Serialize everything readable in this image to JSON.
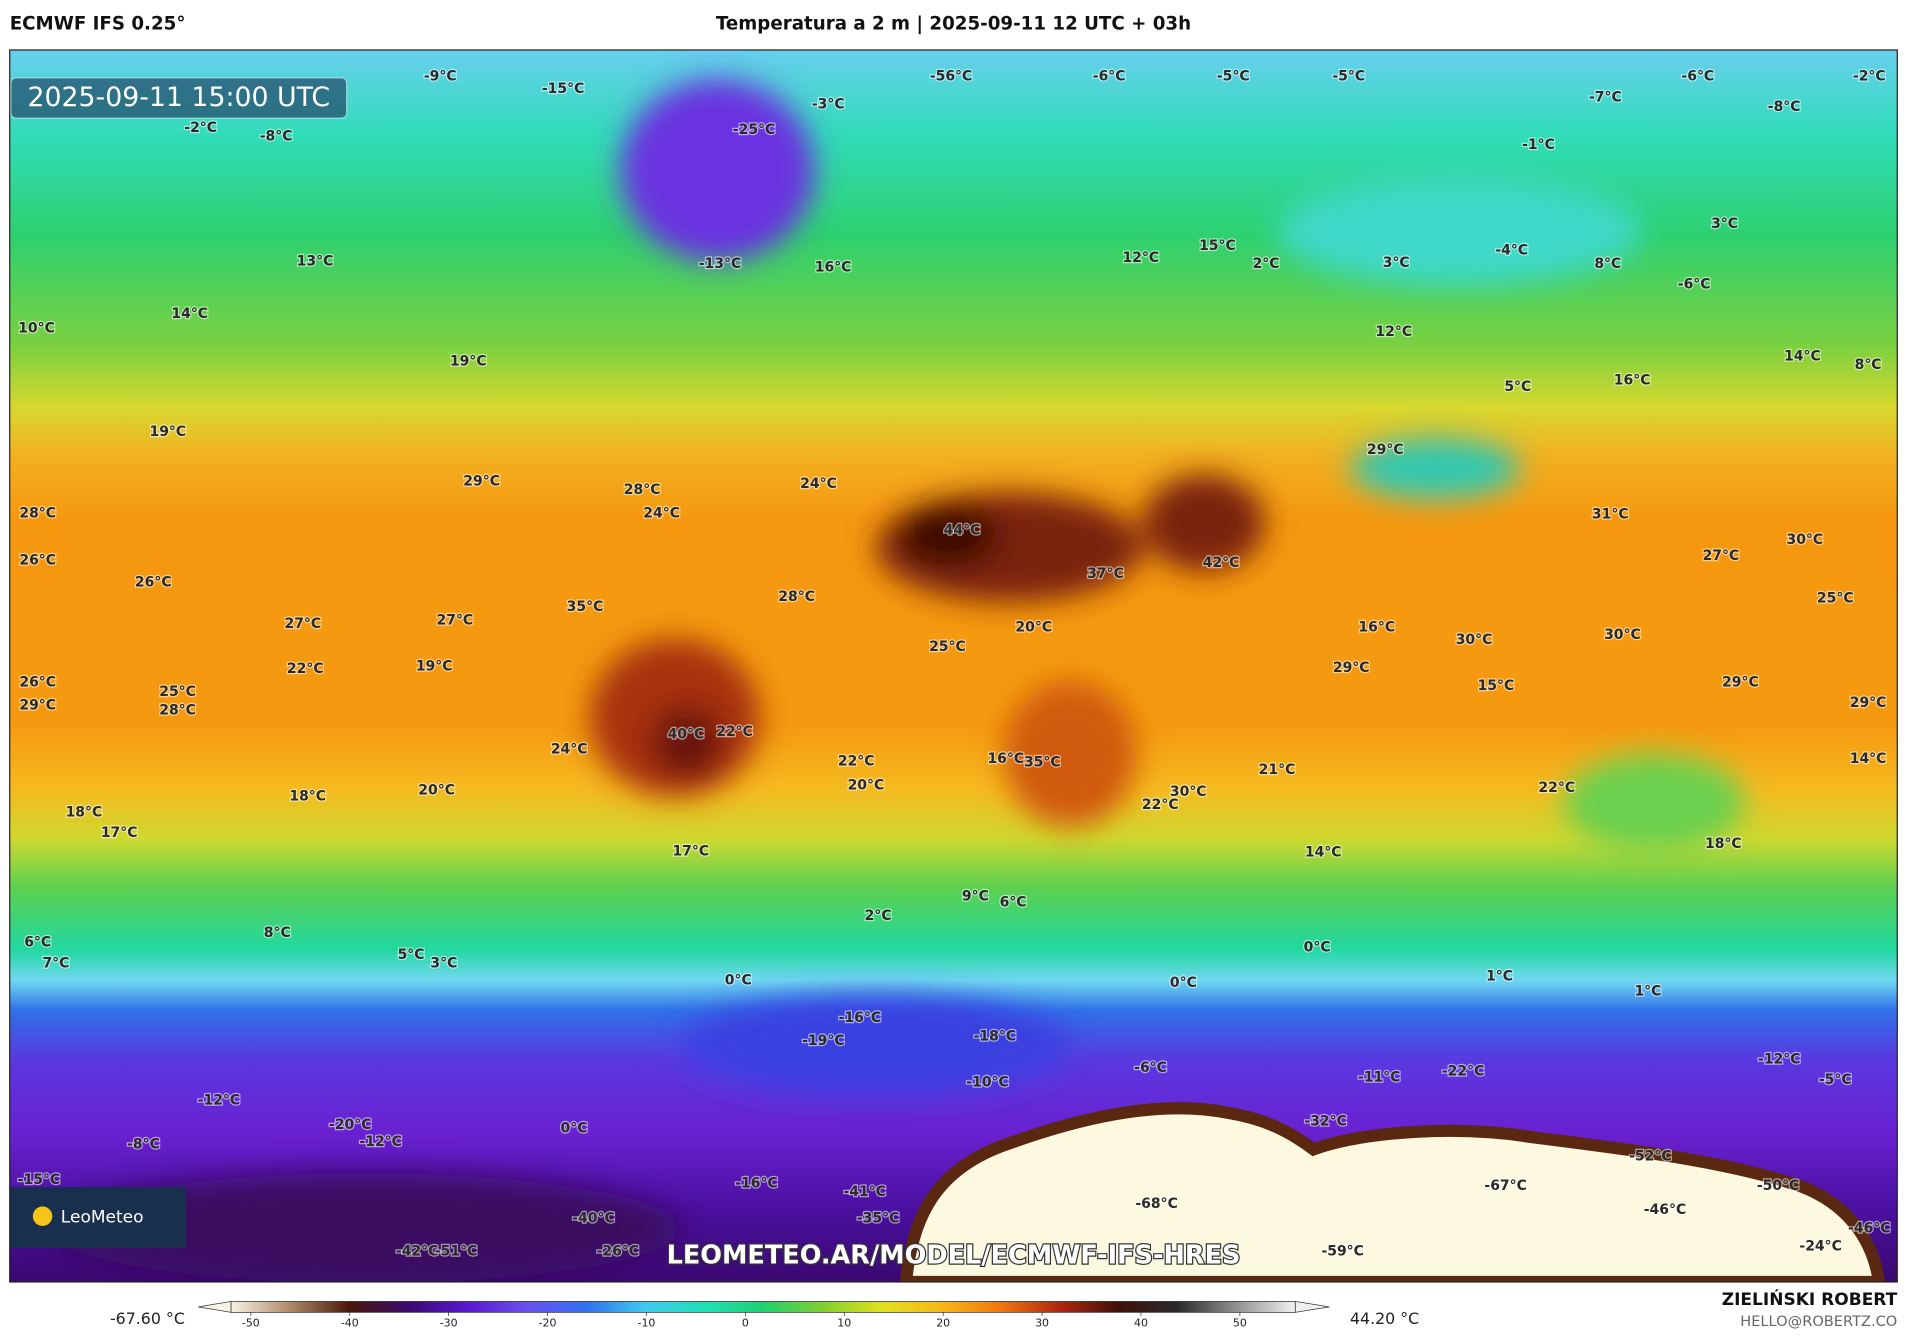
{
  "header": {
    "source": "ECMWF IFS 0.25°",
    "title": "Temperatura a 2 m | 2025-09-11 12 UTC + 03h"
  },
  "map": {
    "timestamp": "2025-09-11 15:00 UTC",
    "logo": "LeoMeteo",
    "watermark": "LEOMETEO.AR/MODEL/ECMWF-IFS-HRES",
    "labels": [
      "-9°C",
      "-15°C",
      "-56°C",
      "-6°C",
      "-5°C",
      "-5°C",
      "-6°C",
      "-2°C",
      "-7°C",
      "-8°C",
      "-25°C",
      "-2°C",
      "-8°C",
      "-3°C",
      "-1°C",
      "-13°C",
      "16°C",
      "12°C",
      "15°C",
      "2°C",
      "3°C",
      "-4°C",
      "8°C",
      "3°C",
      "-6°C",
      "13°C",
      "10°C",
      "14°C",
      "19°C",
      "12°C",
      "14°C",
      "8°C",
      "19°C",
      "5°C",
      "16°C",
      "29°C",
      "28°C",
      "24°C",
      "24°C",
      "28°C",
      "29°C",
      "44°C",
      "37°C",
      "42°C",
      "31°C",
      "30°C",
      "27°C",
      "26°C",
      "26°C",
      "28°C",
      "25°C",
      "27°C",
      "27°C",
      "35°C",
      "20°C",
      "25°C",
      "16°C",
      "30°C",
      "30°C",
      "22°C",
      "19°C",
      "29°C",
      "15°C",
      "29°C",
      "26°C",
      "29°C",
      "25°C",
      "28°C",
      "29°C",
      "40°C",
      "22°C",
      "24°C",
      "22°C",
      "20°C",
      "21°C",
      "14°C",
      "35°C",
      "16°C",
      "22°C",
      "18°C",
      "18°C",
      "17°C",
      "20°C",
      "30°C",
      "22°C",
      "17°C",
      "14°C",
      "18°C",
      "9°C",
      "6°C",
      "2°C",
      "8°C",
      "6°C",
      "7°C",
      "5°C",
      "3°C",
      "0°C",
      "0°C",
      "0°C",
      "1°C",
      "1°C",
      "-16°C",
      "-19°C",
      "-18°C",
      "-6°C",
      "-10°C",
      "-11°C",
      "-22°C",
      "-12°C",
      "-5°C",
      "-12°C",
      "-20°C",
      "-12°C",
      "-8°C",
      "-32°C",
      "0°C",
      "-15°C",
      "-16°C",
      "-41°C",
      "-35°C",
      "-68°C",
      "-67°C",
      "-52°C",
      "-50°C",
      "-46°C",
      "-40°C",
      "-26°C",
      "-59°C",
      "-24°C",
      "-46°C",
      "-42°C",
      "-51°C"
    ]
  },
  "colorbar": {
    "min_label": "-67.60 °C",
    "max_label": "44.20 °C",
    "ticks": [
      -50,
      -40,
      -30,
      -20,
      -10,
      0,
      10,
      20,
      30,
      40,
      50
    ],
    "lim": [
      -52,
      55.6
    ],
    "colors": [
      "#f8f2e4",
      "#b08868",
      "#4a1808",
      "#3a0a70",
      "#5a18d0",
      "#6a50ee",
      "#3070f0",
      "#40c8f0",
      "#20e0b8",
      "#20d070",
      "#80d030",
      "#e0e020",
      "#f8b818",
      "#f07810",
      "#b02810",
      "#401008",
      "#2a2a2a",
      "#909090",
      "#f0f0f0"
    ]
  },
  "footer": {
    "author": "ZIELIŃSKI ROBERT",
    "email": "HELLO@ROBERTZ.CO"
  }
}
